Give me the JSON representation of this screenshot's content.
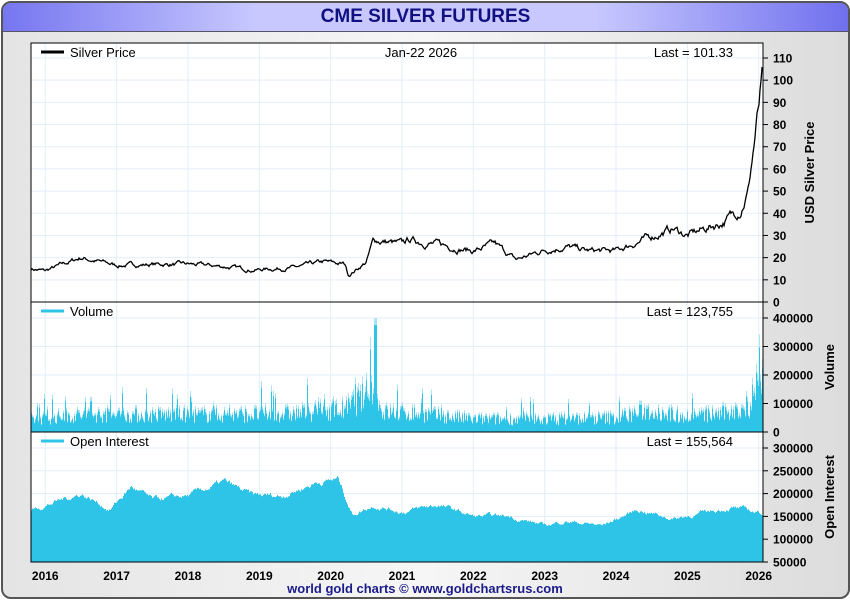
{
  "header": {
    "title": "CME SILVER FUTURES"
  },
  "footer": {
    "text": "world gold charts © www.goldchartsrus.com"
  },
  "chart_data": [
    {
      "type": "line",
      "name": "price",
      "legend": "Silver Price",
      "date": "Jan-22  2026",
      "last": "Last = 101.33",
      "ylabel": "USD Silver Price",
      "ylim": [
        0,
        110
      ],
      "yticks": [
        "0",
        "10",
        "20",
        "30",
        "40",
        "50",
        "60",
        "70",
        "80",
        "90",
        "100",
        "110"
      ],
      "x": [
        2015.8,
        2016.0,
        2016.5,
        2017.0,
        2017.5,
        2018.0,
        2018.5,
        2018.9,
        2019.5,
        2019.9,
        2020.2,
        2020.25,
        2020.5,
        2020.6,
        2021.0,
        2021.1,
        2021.5,
        2022.0,
        2022.3,
        2022.6,
        2023.0,
        2023.3,
        2023.6,
        2024.0,
        2024.3,
        2024.8,
        2025.0,
        2025.5,
        2025.75,
        2025.85,
        2025.95,
        2026.06
      ],
      "y": [
        15,
        14,
        20,
        16.5,
        17,
        17,
        16,
        14.5,
        15.5,
        18,
        17,
        12,
        18,
        28,
        26,
        28,
        26,
        23,
        26,
        19,
        23.5,
        25,
        23,
        23,
        27,
        33,
        30,
        36,
        42,
        50,
        75,
        101.33
      ]
    },
    {
      "type": "area",
      "name": "volume",
      "legend": "Volume",
      "last": "Last = 123,755",
      "ylabel": "Volume",
      "ylim": [
        0,
        400000
      ],
      "yticks": [
        "0",
        "100000",
        "200000",
        "300000",
        "400000"
      ],
      "x": [
        2015.8,
        2016.5,
        2017.5,
        2018.5,
        2019.5,
        2020.2,
        2020.6,
        2020.7,
        2021.2,
        2022.0,
        2023.0,
        2024.0,
        2024.4,
        2025.0,
        2025.7,
        2026.06
      ],
      "y": [
        45000,
        60000,
        60000,
        60000,
        65000,
        80000,
        150000,
        70000,
        65000,
        45000,
        45000,
        50000,
        75000,
        55000,
        70000,
        123755
      ]
    },
    {
      "type": "area",
      "name": "open-interest",
      "legend": "Open Interest",
      "last": "Last = 155,564",
      "ylabel": "Open Interest",
      "ylim": [
        50000,
        300000
      ],
      "yticks": [
        "50000",
        "100000",
        "150000",
        "200000",
        "250000",
        "300000"
      ],
      "x": [
        2015.8,
        2016.5,
        2016.9,
        2017.2,
        2017.5,
        2018.0,
        2018.5,
        2018.9,
        2019.3,
        2019.8,
        2020.1,
        2020.3,
        2020.6,
        2021.0,
        2021.5,
        2022.0,
        2022.5,
        2023.0,
        2023.3,
        2023.8,
        2024.3,
        2024.8,
        2025.3,
        2025.6,
        2026.06
      ],
      "y": [
        165000,
        200000,
        165000,
        215000,
        185000,
        195000,
        225000,
        195000,
        195000,
        225000,
        232000,
        155000,
        175000,
        160000,
        175000,
        150000,
        150000,
        130000,
        140000,
        130000,
        165000,
        145000,
        160000,
        170000,
        155564
      ]
    }
  ],
  "xticks": [
    "2016",
    "2017",
    "2018",
    "2019",
    "2020",
    "2021",
    "2022",
    "2023",
    "2024",
    "2025",
    "2026"
  ]
}
